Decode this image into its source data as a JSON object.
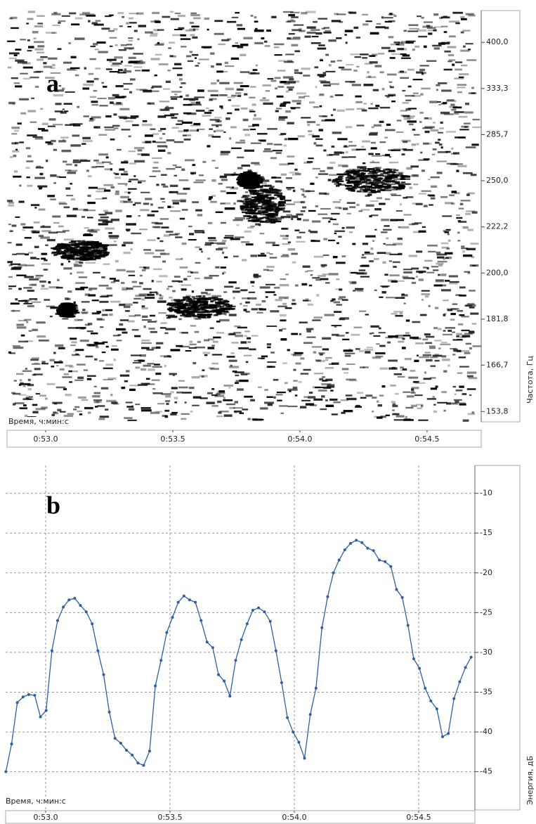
{
  "chart_data": [
    {
      "type": "spectrogram",
      "label": "a",
      "xlabel": "Время, ч:мин:с",
      "ylabel": "Частота, Гц",
      "xlim": [
        52.848,
        54.713
      ],
      "xticks": [
        {
          "value": 53.0,
          "label": "0:53.0"
        },
        {
          "value": 53.5,
          "label": "0:53.5"
        },
        {
          "value": 54.0,
          "label": "0:54.0"
        },
        {
          "value": 54.5,
          "label": "0:54.5"
        }
      ],
      "ylim": [
        151.2,
        464
      ],
      "yscale": "reciprocal",
      "yticks": [
        {
          "value": 400,
          "label": "400,0"
        },
        {
          "value": 333.3,
          "label": "333,3"
        },
        {
          "value": 285.7,
          "label": "285,7"
        },
        {
          "value": 250,
          "label": "250,0"
        },
        {
          "value": 222.2,
          "label": "222,2"
        },
        {
          "value": 200,
          "label": "200,0"
        },
        {
          "value": 181.8,
          "label": "181,8"
        },
        {
          "value": 166.7,
          "label": "166,7"
        },
        {
          "value": 153.8,
          "label": "153,8"
        }
      ]
    },
    {
      "type": "line",
      "label": "b",
      "xlabel": "Время, ч:мин:с",
      "ylabel": "Энергия, дБ",
      "xlim": [
        52.839,
        54.726
      ],
      "xticks": [
        {
          "value": 53.0,
          "label": "0:53.0"
        },
        {
          "value": 53.5,
          "label": "0:53.5"
        },
        {
          "value": 54.0,
          "label": "0:54.0"
        },
        {
          "value": 54.5,
          "label": "0:54.5"
        }
      ],
      "ylim": [
        -49.8,
        -6.5
      ],
      "yticks": [
        -10,
        -15,
        -20,
        -25,
        -30,
        -35,
        -40,
        -45
      ],
      "grid": true,
      "x": [
        52.84,
        52.863,
        52.886,
        52.909,
        52.932,
        52.956,
        52.979,
        53.002,
        53.025,
        53.048,
        53.071,
        53.094,
        53.117,
        53.14,
        53.163,
        53.187,
        53.21,
        53.233,
        53.256,
        53.279,
        53.302,
        53.325,
        53.348,
        53.371,
        53.394,
        53.418,
        53.441,
        53.464,
        53.487,
        53.51,
        53.533,
        53.556,
        53.579,
        53.602,
        53.625,
        53.649,
        53.672,
        53.695,
        53.718,
        53.741,
        53.764,
        53.787,
        53.81,
        53.833,
        53.856,
        53.88,
        53.903,
        53.926,
        53.949,
        53.972,
        53.995,
        54.018,
        54.041,
        54.064,
        54.087,
        54.111,
        54.134,
        54.157,
        54.18,
        54.203,
        54.226,
        54.249,
        54.272,
        54.295,
        54.318,
        54.342,
        54.365,
        54.388,
        54.411,
        54.434,
        54.457,
        54.48,
        54.503,
        54.526,
        54.549,
        54.573,
        54.596,
        54.619,
        54.642,
        54.665,
        54.688,
        54.711
      ],
      "series": [
        {
          "color": "#2e5f9e",
          "values": [
            -45,
            -41.5,
            -36.3,
            -35.6,
            -35.3,
            -35.4,
            -38.1,
            -37.3,
            -29.8,
            -26.0,
            -24.3,
            -23.4,
            -23.2,
            -24.1,
            -24.9,
            -26.4,
            -29.8,
            -32.8,
            -37.5,
            -40.8,
            -41.4,
            -42.3,
            -42.9,
            -43.9,
            -44.2,
            -42.4,
            -34.2,
            -31.0,
            -27.5,
            -25.6,
            -23.7,
            -22.9,
            -23.4,
            -23.7,
            -26.0,
            -28.7,
            -29.4,
            -32.8,
            -33.6,
            -35.5,
            -31.0,
            -28.4,
            -26.4,
            -24.7,
            -24.4,
            -24.9,
            -26.1,
            -29.8,
            -33.8,
            -38.2,
            -40.0,
            -41.3,
            -43.3,
            -37.8,
            -34.5,
            -26.9,
            -23.0,
            -20.0,
            -18.4,
            -17.1,
            -16.3,
            -15.9,
            -16.2,
            -16.9,
            -17.2,
            -18.4,
            -18.6,
            -19.2,
            -22.1,
            -23.1,
            -26.6,
            -30.8,
            -32.0,
            -34.5,
            -36.1,
            -37.1,
            -40.6,
            -40.2,
            -35.8,
            -33.7,
            -31.9,
            -30.6
          ]
        }
      ]
    }
  ]
}
